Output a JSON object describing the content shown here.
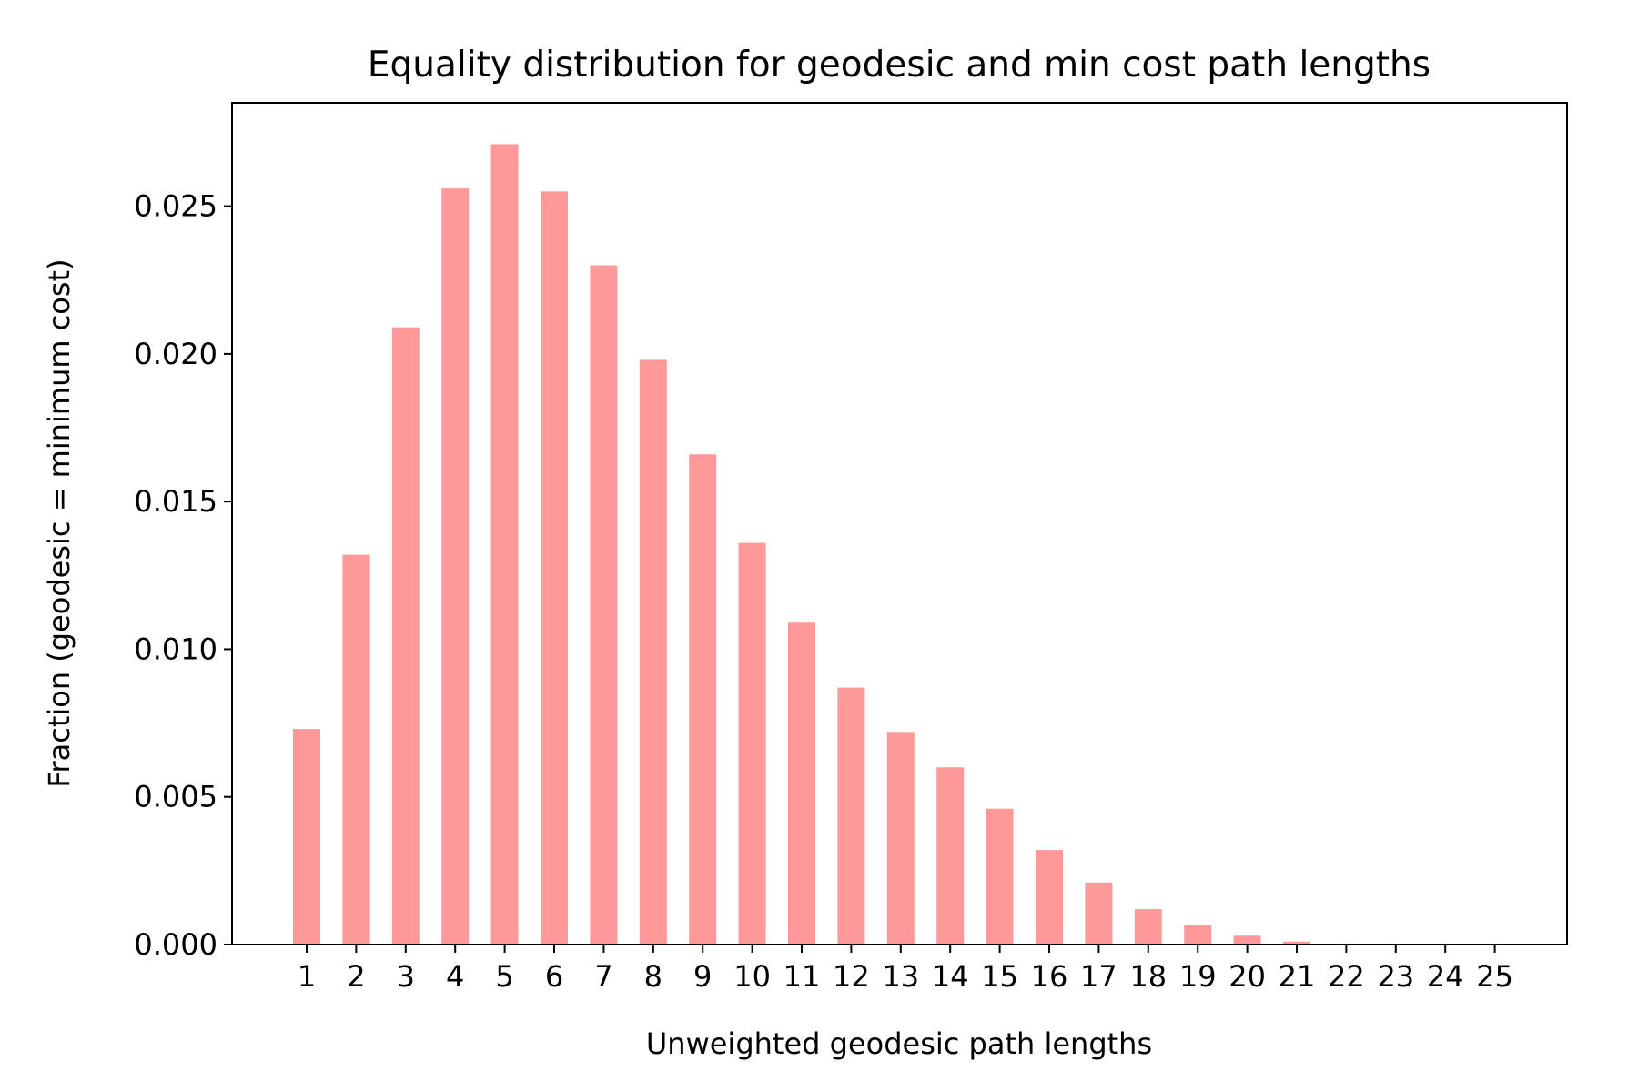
{
  "chart_data": {
    "type": "bar",
    "title": "Equality distribution for geodesic and min cost path lengths",
    "xlabel": "Unweighted geodesic path lengths",
    "ylabel": "Fraction (geodesic = minimum cost)",
    "categories": [
      "1",
      "2",
      "3",
      "4",
      "5",
      "6",
      "7",
      "8",
      "9",
      "10",
      "11",
      "12",
      "13",
      "14",
      "15",
      "16",
      "17",
      "18",
      "19",
      "20",
      "21",
      "22",
      "23",
      "24",
      "25"
    ],
    "values": [
      0.0073,
      0.0132,
      0.0209,
      0.0256,
      0.0271,
      0.0255,
      0.023,
      0.0198,
      0.0166,
      0.0136,
      0.0109,
      0.0087,
      0.0072,
      0.006,
      0.0046,
      0.0032,
      0.0021,
      0.0012,
      0.00065,
      0.0003,
      0.0001,
      3e-05,
      1e-05,
      5e-06,
      2e-06
    ],
    "ylim": [
      0,
      0.0285
    ],
    "yticks": [
      0.0,
      0.005,
      0.01,
      0.015,
      0.02,
      0.025
    ],
    "ytick_labels": [
      "0.000",
      "0.005",
      "0.010",
      "0.015",
      "0.020",
      "0.025"
    ],
    "bar_color": "#ff9999",
    "grid": false,
    "legend": "none"
  }
}
